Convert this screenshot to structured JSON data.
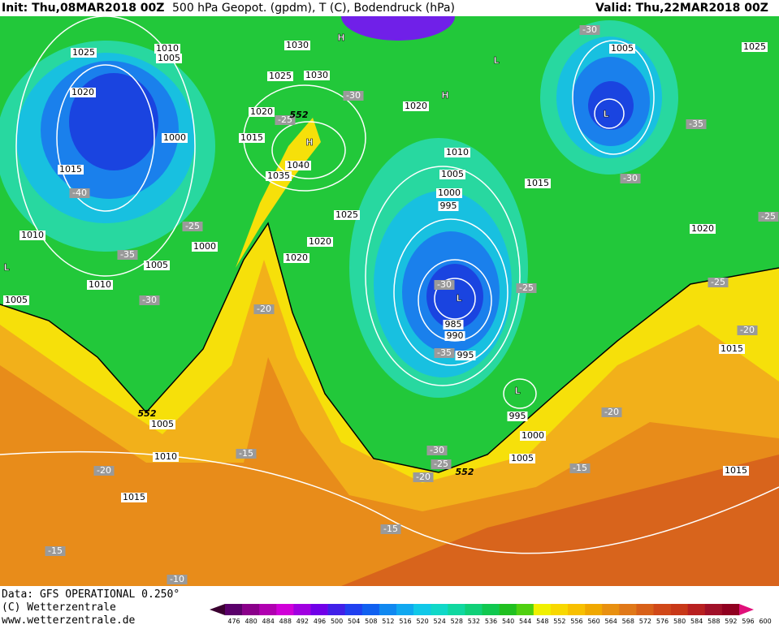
{
  "header": {
    "init": "Init: Thu,08MAR2018 00Z",
    "title": "500 hPa Geopot. (gpdm), T (C), Bodendruck (hPa)",
    "valid": "Valid: Thu,22MAR2018 00Z"
  },
  "map": {
    "isobar_labels": [
      1025,
      1010,
      1005,
      1020,
      1000,
      1015,
      1010,
      1000,
      1005,
      1010,
      1005,
      1030,
      1025,
      1030,
      1020,
      1015,
      1040,
      1035,
      1025,
      1020,
      1020,
      1020,
      1010,
      1005,
      1000,
      995,
      1015,
      1005,
      1025,
      1020,
      985,
      990,
      995,
      995,
      1000,
      1005,
      1015,
      1015,
      1005,
      1010,
      1015
    ],
    "temperature_labels": [
      -30,
      -30,
      -25,
      -35,
      -30,
      -40,
      -25,
      -35,
      -30,
      -20,
      -25,
      -25,
      -20,
      -30,
      -25,
      -35,
      -20,
      -30,
      -25,
      -20,
      -15,
      -15,
      -20,
      -15,
      -15,
      -10
    ],
    "height_labels": [
      552,
      552,
      552
    ],
    "pressure_centers": [
      "H",
      "L",
      "H",
      "L",
      "H",
      "L",
      "L",
      "L"
    ]
  },
  "footer": {
    "data": "Data: GFS OPERATIONAL 0.250°",
    "copyright": "(C) Wetterzentrale",
    "url": "www.wetterzentrale.de"
  },
  "colorbar": {
    "labels": [
      476,
      480,
      484,
      488,
      492,
      496,
      500,
      504,
      508,
      512,
      516,
      520,
      524,
      528,
      532,
      536,
      540,
      544,
      548,
      552,
      556,
      560,
      564,
      568,
      572,
      576,
      580,
      584,
      588,
      592,
      596,
      600
    ]
  }
}
